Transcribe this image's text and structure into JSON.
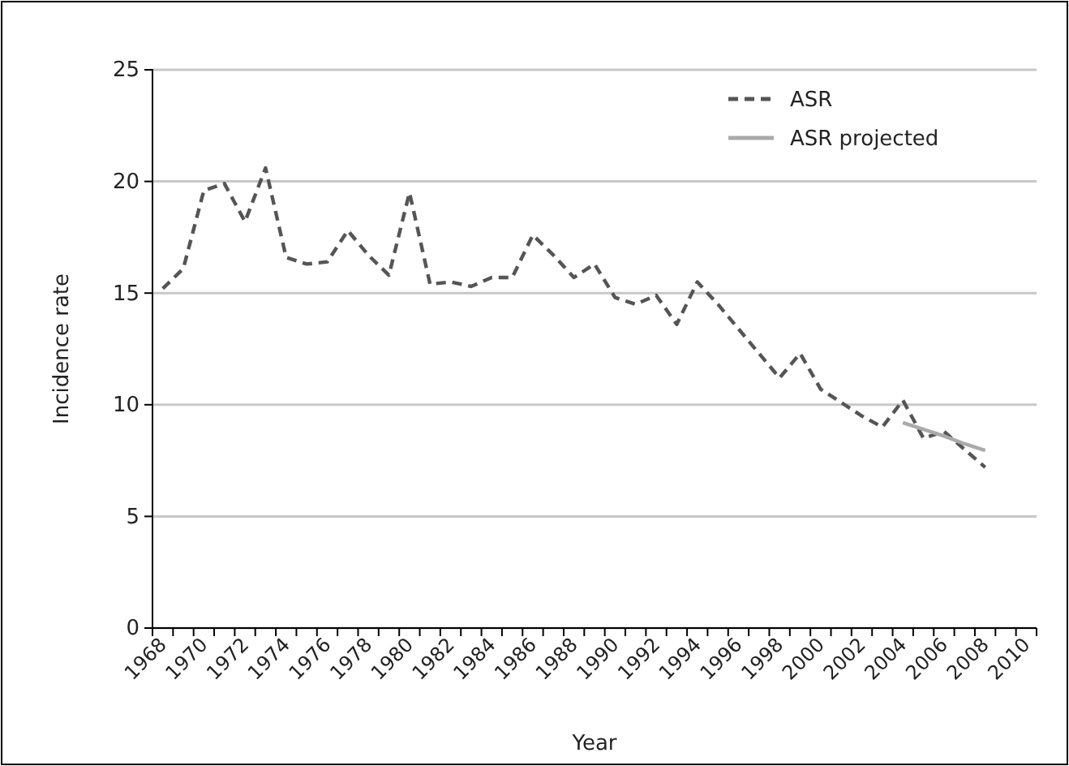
{
  "chart_data": {
    "type": "line",
    "xlabel": "Year",
    "ylabel": "Incidence rate",
    "categories": [
      "1968",
      null,
      "1970",
      null,
      "1972",
      null,
      "1974",
      null,
      "1976",
      null,
      "1978",
      null,
      "1980",
      null,
      "1982",
      null,
      "1984",
      null,
      "1986",
      null,
      "1988",
      null,
      "1990",
      null,
      "1992",
      null,
      "1994",
      null,
      "1996",
      null,
      "1998",
      null,
      "2000",
      null,
      "2002",
      null,
      "2004",
      null,
      "2006",
      null,
      "2008",
      null,
      "2010"
    ],
    "series": [
      {
        "name": "ASR",
        "color": "#555555",
        "line_style": "dashed",
        "values": [
          15.2,
          16.1,
          19.6,
          19.9,
          18.2,
          20.6,
          16.6,
          16.3,
          16.4,
          17.8,
          16.7,
          15.8,
          19.5,
          15.4,
          15.5,
          15.3,
          15.7,
          15.7,
          17.6,
          16.7,
          15.7,
          16.3,
          14.8,
          14.5,
          14.9,
          13.6,
          15.5,
          14.5,
          13.4,
          12.3,
          11.2,
          12.3,
          10.7,
          10.1,
          9.5,
          9.0,
          10.2,
          8.5,
          8.8,
          8.0,
          7.2,
          null,
          null
        ]
      },
      {
        "name": "ASR projected",
        "color": "#aaaaaa",
        "line_style": "solid",
        "values": [
          null,
          null,
          null,
          null,
          null,
          null,
          null,
          null,
          null,
          null,
          null,
          null,
          null,
          null,
          null,
          null,
          null,
          null,
          null,
          null,
          null,
          null,
          null,
          null,
          null,
          null,
          null,
          null,
          null,
          null,
          null,
          null,
          null,
          null,
          null,
          null,
          9.2,
          8.9,
          8.6,
          8.25,
          7.95,
          null,
          null
        ]
      }
    ],
    "ylim": [
      0,
      25
    ],
    "yticks": [
      0,
      5,
      10,
      15,
      20,
      25
    ],
    "grid": "y",
    "legend": "top right",
    "marker": "none"
  }
}
